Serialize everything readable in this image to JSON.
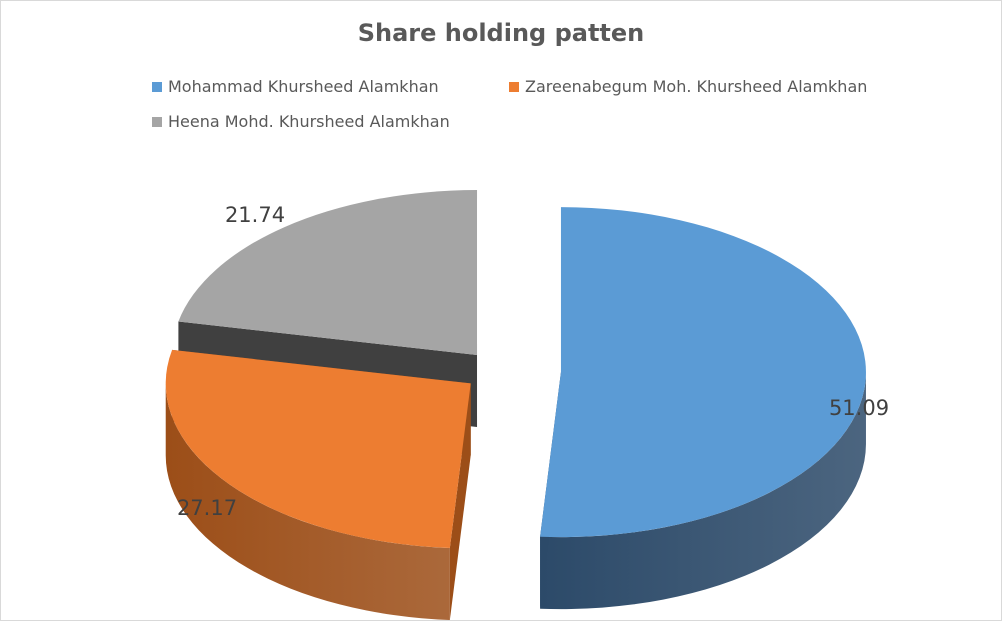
{
  "chart_data": {
    "type": "pie",
    "title": "Share holding patten",
    "categories": [
      "Mohammad Khursheed Alamkhan",
      "Zareenabegum Moh. Khursheed Alamkhan",
      "Heena Mohd. Khursheed Alamkhan"
    ],
    "values": [
      51.09,
      27.17,
      21.74
    ],
    "data_labels": [
      "51.09",
      "27.17",
      "21.74"
    ],
    "colors": [
      "#5B9BD5",
      "#ED7D31",
      "#A5A5A5"
    ],
    "side_colors": [
      "#2C4A69",
      "#9C4E18",
      "#404040"
    ],
    "legend_position": "top",
    "style": "3d-exploded"
  }
}
